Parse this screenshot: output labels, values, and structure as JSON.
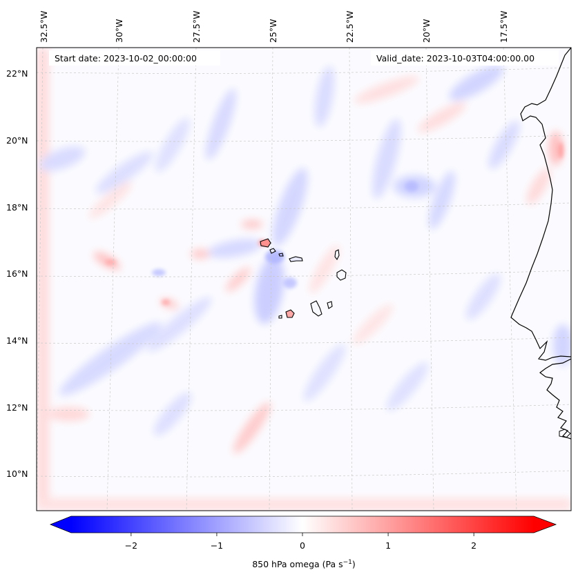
{
  "map": {
    "start_label": "Start date: 2023-10-02_00:00:00",
    "valid_label": "Valid_date: 2023-10-03T04:00:00.00",
    "lon_ticks": [
      "32.5°W",
      "30°W",
      "27.5°W",
      "25°W",
      "22.5°W",
      "20°W",
      "17.5°W"
    ],
    "lat_ticks": [
      "22°N",
      "20°N",
      "18°N",
      "16°N",
      "14°N",
      "12°N",
      "10°N"
    ],
    "land_color": "#000000",
    "grid_color": "#c8c8c8"
  },
  "colorbar": {
    "label": "850 hPa omega (Pa s",
    "label_sup": "−1",
    "label_end": ")",
    "min": -2.7,
    "max": 2.7,
    "ticks": [
      -2,
      -1,
      0,
      1,
      2
    ],
    "tick_labels": [
      "−2",
      "−1",
      "0",
      "1",
      "2"
    ],
    "low_color": "#0000ff",
    "mid_color": "#ffffff",
    "high_color": "#ff0000"
  }
}
